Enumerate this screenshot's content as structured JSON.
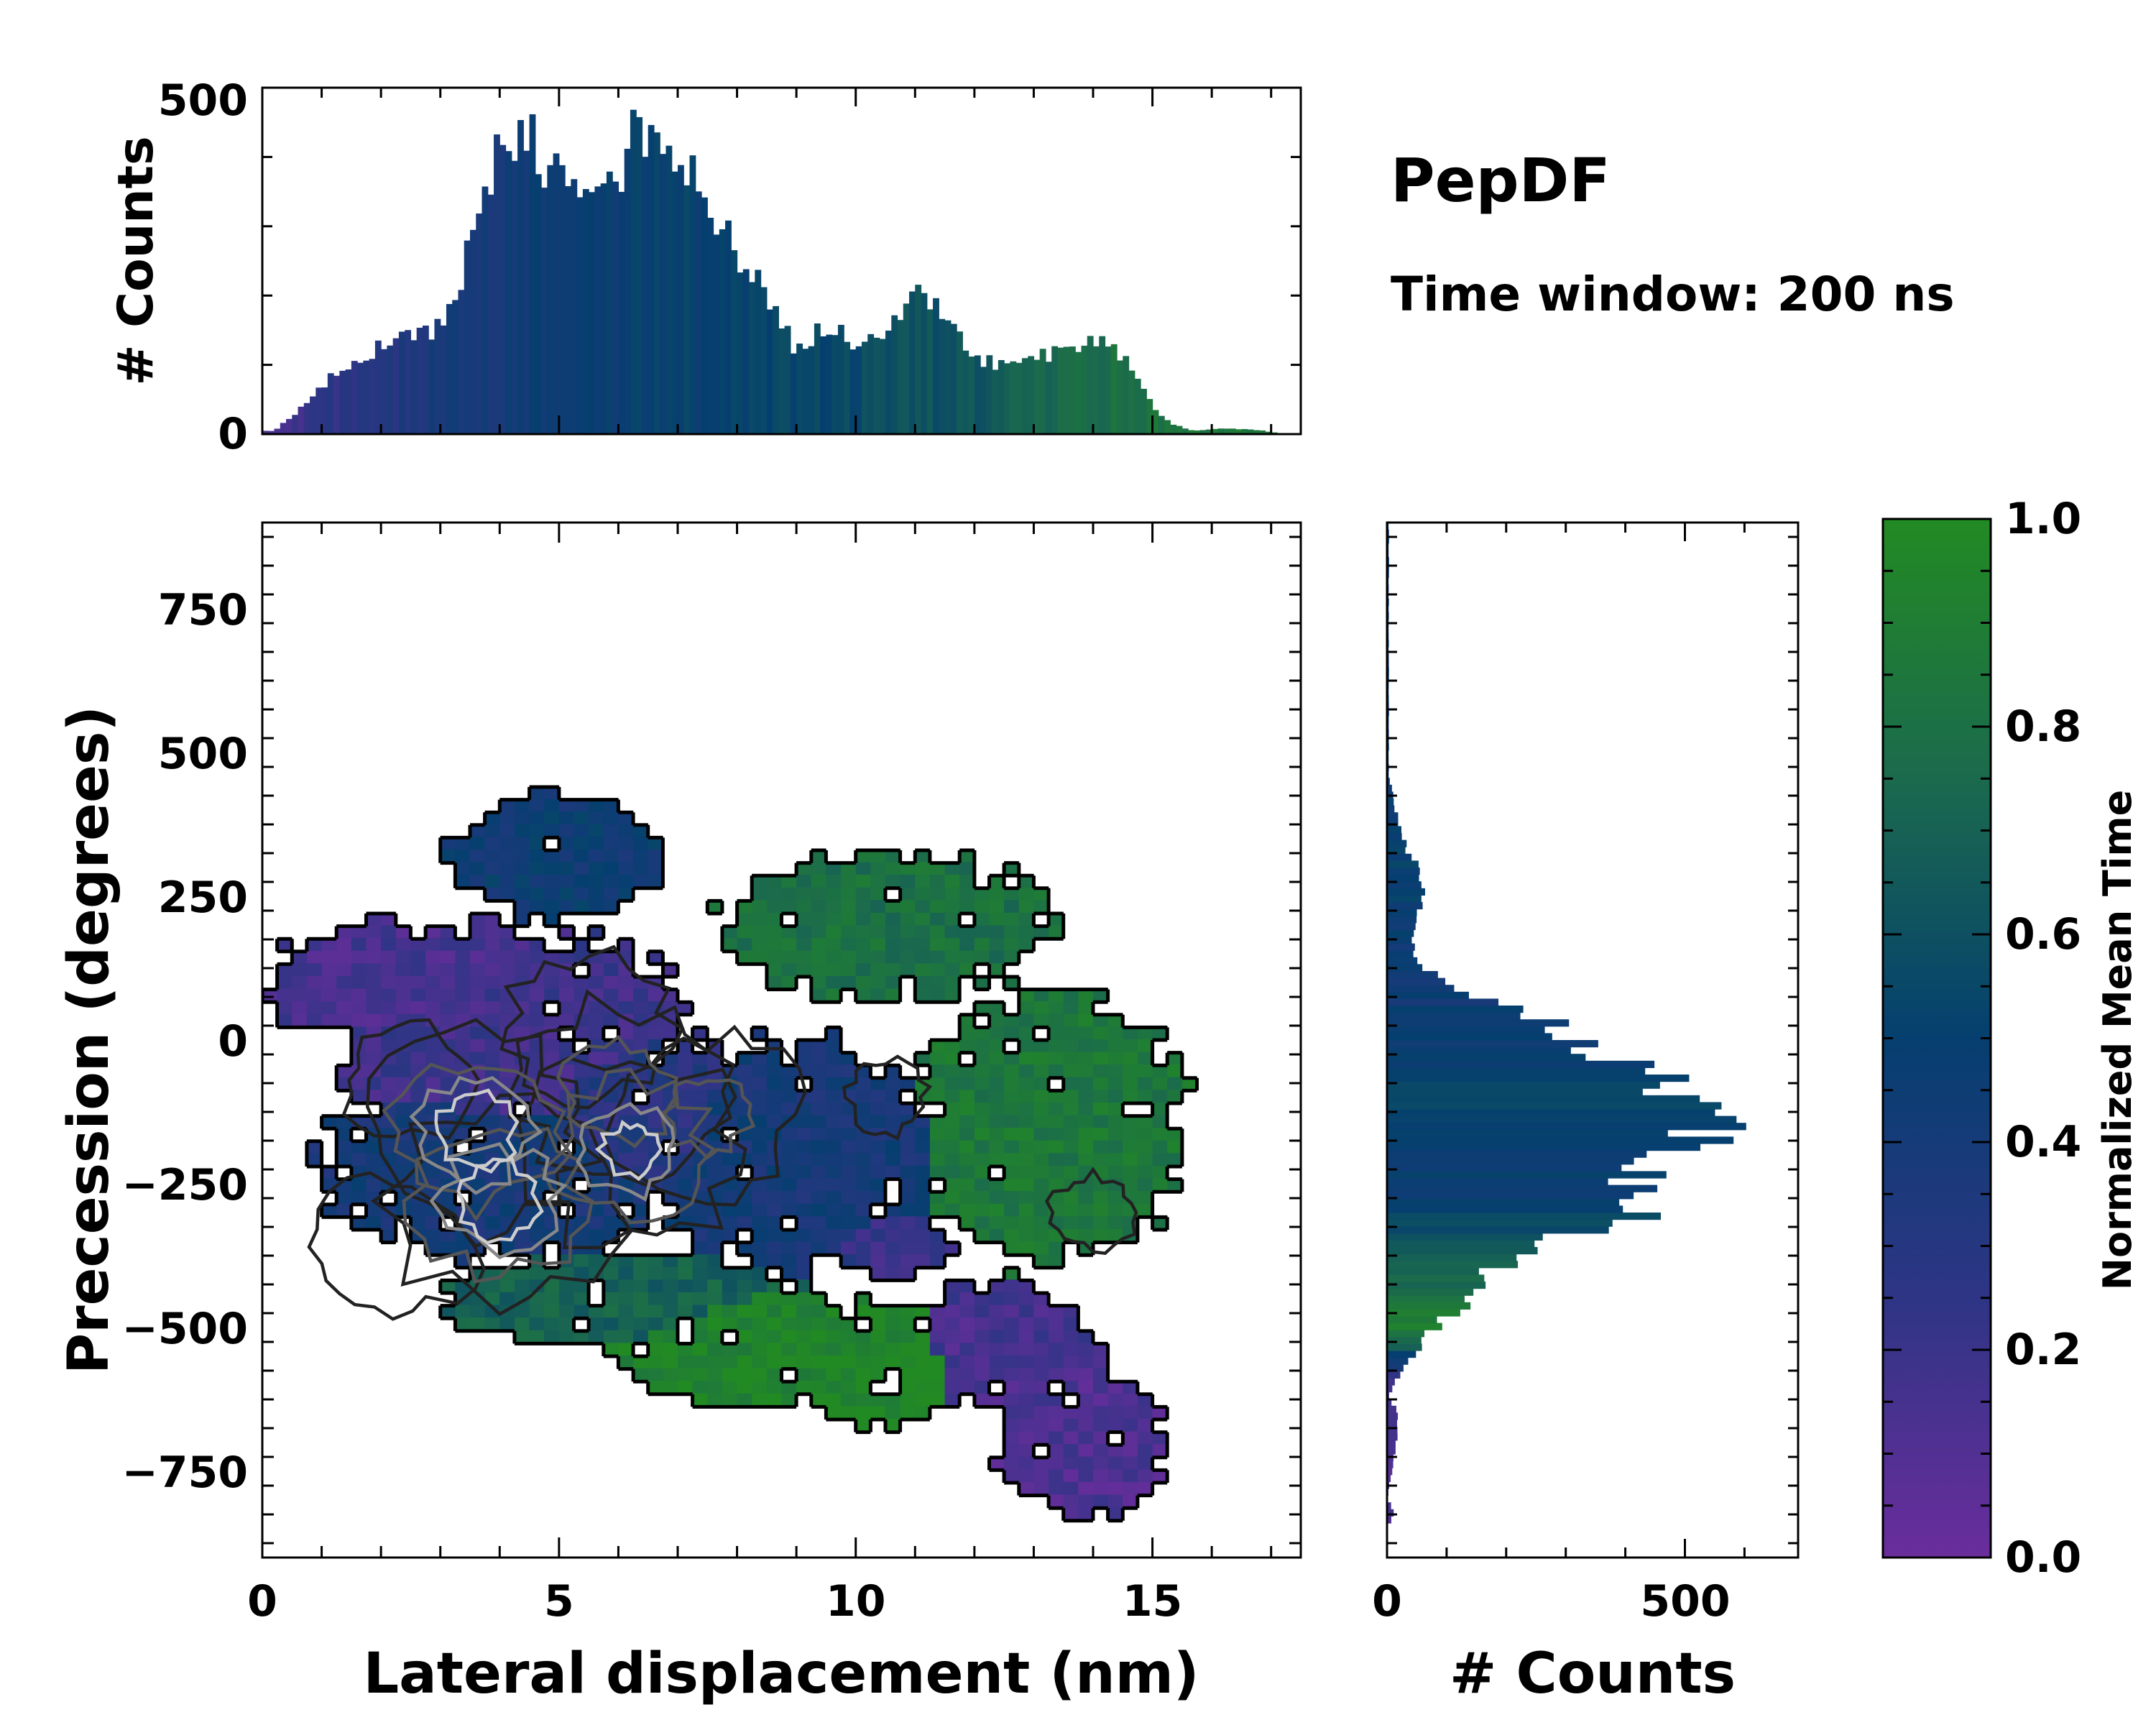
{
  "figure": {
    "title": "PepDF",
    "subtitle": "Time window: 200 ns"
  },
  "chart_data": [
    {
      "id": "top_hist",
      "type": "bar",
      "orientation": "vertical",
      "xlabel": "",
      "ylabel": "# Counts",
      "xlim": [
        0,
        17.5
      ],
      "ylim": [
        0,
        500
      ],
      "yticks": [
        0,
        500
      ],
      "bin_width": 0.1,
      "anchors_x": [
        0.2,
        0.5,
        1.0,
        1.5,
        2.0,
        2.5,
        3.0,
        3.3,
        3.6,
        3.9,
        4.2,
        4.5,
        4.8,
        5.2,
        5.6,
        6.0,
        6.3,
        6.6,
        7.0,
        7.4,
        7.8,
        8.2,
        8.6,
        9.0,
        9.5,
        10.0,
        10.5,
        11.0,
        11.5,
        12.0,
        12.5,
        13.0,
        13.5,
        14.0,
        14.5,
        15.0,
        15.3,
        15.7,
        16.2,
        16.8,
        17.2
      ],
      "anchors_y": [
        5,
        25,
        70,
        105,
        125,
        140,
        155,
        200,
        320,
        390,
        430,
        440,
        380,
        350,
        360,
        370,
        450,
        410,
        400,
        360,
        290,
        240,
        180,
        120,
        160,
        130,
        150,
        200,
        170,
        110,
        100,
        110,
        120,
        140,
        110,
        40,
        15,
        5,
        8,
        6,
        0
      ],
      "colors_by_x": {
        "x": [
          0,
          3,
          6,
          9,
          12,
          14,
          17.5
        ],
        "time": [
          0.15,
          0.38,
          0.48,
          0.55,
          0.62,
          0.78,
          0.9
        ]
      }
    },
    {
      "id": "main_2d",
      "type": "heatmap",
      "title": "",
      "xlabel": "Lateral displacement (nm)",
      "ylabel": "Precession (degrees)",
      "xlim": [
        0,
        17.5
      ],
      "ylim": [
        -900,
        900
      ],
      "xticks": [
        0,
        5,
        10,
        15
      ],
      "yticks": [
        -750,
        -500,
        -250,
        0,
        250,
        500,
        750
      ],
      "ytick_labels": [
        "−750",
        "−500",
        "−250",
        "0",
        "250",
        "500",
        "750"
      ],
      "cell_size": [
        0.25,
        22
      ],
      "regions": [
        {
          "cx": 2.5,
          "cy": 100,
          "rx": 2.5,
          "ry": 110,
          "time": 0.15
        },
        {
          "cx": 4.3,
          "cy": 0,
          "rx": 3.2,
          "ry": 200,
          "time": 0.18
        },
        {
          "cx": 5.0,
          "cy": 320,
          "rx": 1.8,
          "ry": 110,
          "time": 0.45
        },
        {
          "cx": 4.0,
          "cy": -220,
          "rx": 3.0,
          "ry": 160,
          "time": 0.4
        },
        {
          "cx": 6.2,
          "cy": -120,
          "rx": 2.0,
          "ry": 160,
          "time": 0.3
        },
        {
          "cx": 9.0,
          "cy": -200,
          "rx": 2.6,
          "ry": 200,
          "time": 0.4
        },
        {
          "cx": 6.0,
          "cy": -450,
          "rx": 3.0,
          "ry": 80,
          "time": 0.7
        },
        {
          "cx": 8.0,
          "cy": -530,
          "rx": 2.0,
          "ry": 110,
          "time": 0.95
        },
        {
          "cx": 10.3,
          "cy": -560,
          "rx": 1.4,
          "ry": 110,
          "time": 0.96
        },
        {
          "cx": 13.2,
          "cy": -150,
          "rx": 2.3,
          "ry": 240,
          "time": 0.85
        },
        {
          "cx": 10.6,
          "cy": 200,
          "rx": 2.8,
          "ry": 130,
          "time": 0.8
        },
        {
          "cx": 12.5,
          "cy": -530,
          "rx": 1.5,
          "ry": 110,
          "time": 0.15
        },
        {
          "cx": 13.8,
          "cy": -700,
          "rx": 1.4,
          "ry": 120,
          "time": 0.12
        },
        {
          "cx": 10.7,
          "cy": -350,
          "rx": 1.0,
          "ry": 60,
          "time": 0.2
        }
      ],
      "density_peaks": [
        {
          "x": 3.6,
          "y": -160,
          "w": 1.0
        },
        {
          "x": 4.0,
          "y": -280,
          "w": 1.0
        },
        {
          "x": 6.2,
          "y": -190,
          "w": 0.9
        },
        {
          "x": 6.0,
          "y": -90,
          "w": 0.7
        },
        {
          "x": 7.5,
          "y": -130,
          "w": 0.6
        },
        {
          "x": 5.5,
          "y": 20,
          "w": 0.5
        },
        {
          "x": 2.2,
          "y": -360,
          "w": 0.5
        },
        {
          "x": 10.5,
          "y": -100,
          "w": 0.3
        },
        {
          "x": 14.0,
          "y": -300,
          "w": 0.3
        },
        {
          "x": 2.5,
          "y": -70,
          "w": 0.4
        }
      ],
      "contour_levels": [
        0.3,
        0.55,
        0.75,
        0.9
      ],
      "contour_colors": [
        "#222222",
        "#555555",
        "#888888",
        "#cccccc"
      ]
    },
    {
      "id": "right_hist",
      "type": "bar",
      "orientation": "horizontal",
      "xlabel": "# Counts",
      "ylabel": "",
      "xlim": [
        0,
        690
      ],
      "ylim": [
        -900,
        900
      ],
      "xticks": [
        0,
        500
      ],
      "bin_width": 12,
      "anchors_y": [
        460,
        400,
        350,
        300,
        250,
        200,
        150,
        100,
        50,
        0,
        -50,
        -100,
        -130,
        -150,
        -200,
        -250,
        -300,
        -350,
        -400,
        -450,
        -500,
        -550,
        -600,
        -620,
        -650,
        -700,
        -750,
        -800,
        -820,
        -850,
        -900
      ],
      "anchors_x": [
        3,
        15,
        25,
        50,
        60,
        55,
        40,
        100,
        230,
        320,
        420,
        500,
        580,
        590,
        440,
        400,
        420,
        280,
        180,
        140,
        80,
        40,
        10,
        3,
        18,
        15,
        8,
        0,
        12,
        0,
        0
      ],
      "colors_by_y": {
        "y": [
          -900,
          -820,
          -600,
          -500,
          -400,
          -250,
          -100,
          100,
          300,
          460
        ],
        "time": [
          0.12,
          0.12,
          0.15,
          0.9,
          0.72,
          0.45,
          0.55,
          0.42,
          0.5,
          0.45
        ]
      }
    },
    {
      "id": "colorbar",
      "type": "colorbar",
      "label": "Normalized Mean Time",
      "range": [
        0.0,
        1.0
      ],
      "ticks": [
        "0.0",
        "0.2",
        "0.4",
        "0.6",
        "0.8",
        "1.0"
      ],
      "tick_values": [
        0.0,
        0.2,
        0.4,
        0.6,
        0.8,
        1.0
      ],
      "colormap": [
        {
          "t": 0.0,
          "color": "#6a2d9c"
        },
        {
          "t": 0.25,
          "color": "#2e3585"
        },
        {
          "t": 0.5,
          "color": "#053f6f"
        },
        {
          "t": 0.75,
          "color": "#1b6a4d"
        },
        {
          "t": 1.0,
          "color": "#228a23"
        }
      ]
    }
  ]
}
